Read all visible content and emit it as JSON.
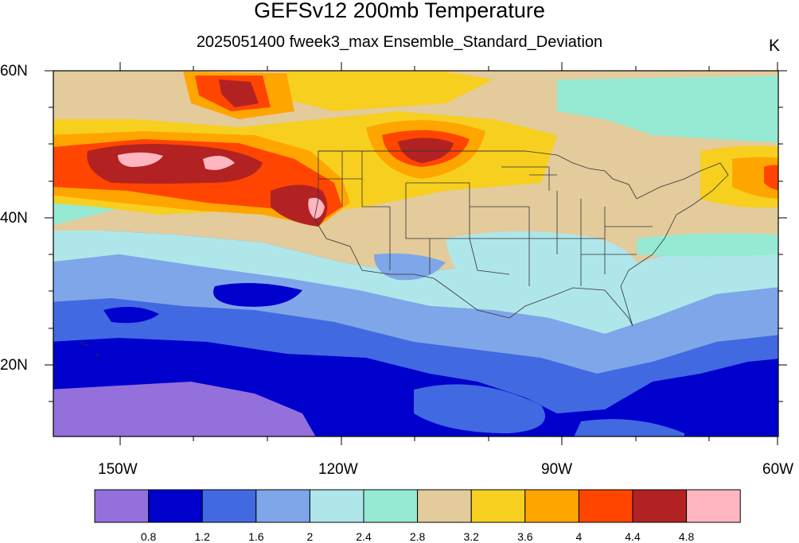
{
  "title": "GEFSv12 200mb Temperature",
  "subtitle": "2025051400 fweek3_max Ensemble_Standard_Deviation",
  "units": "K",
  "latitude_labels": [
    "60N",
    "40N",
    "20N"
  ],
  "longitude_labels": [
    "150W",
    "120W",
    "90W",
    "60W"
  ],
  "colorbar": {
    "colors": [
      "#9370DB",
      "#0000CD",
      "#4169E1",
      "#7FA6E8",
      "#AFE6EA",
      "#96EAD4",
      "#E3CB9C",
      "#F7CF1F",
      "#FFA500",
      "#FF4500",
      "#B22222",
      "#FFB6C1"
    ],
    "labels": [
      "0.8",
      "1.2",
      "1.6",
      "2",
      "2.4",
      "2.8",
      "3.2",
      "3.6",
      "4",
      "4.4",
      "4.8"
    ]
  }
}
